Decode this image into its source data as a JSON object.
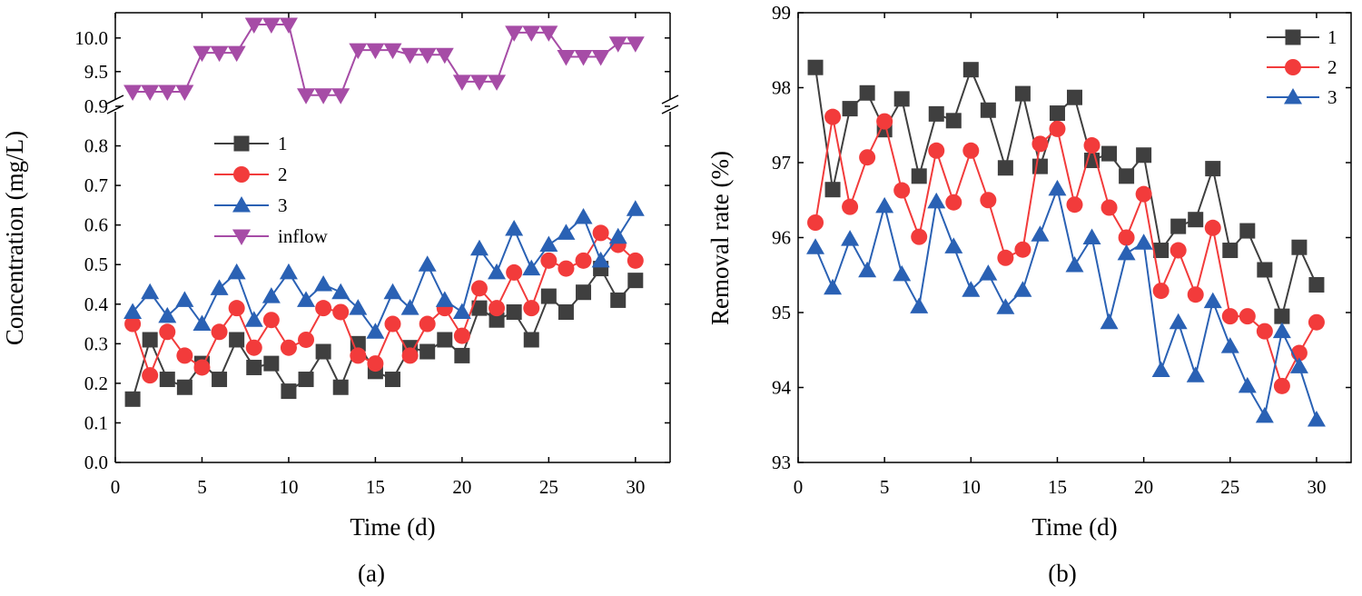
{
  "chart_data": [
    {
      "type": "line",
      "panel": "a",
      "caption": "(a)",
      "xlabel": "Time (d)",
      "ylabel": "Concentration (mg/L)",
      "xlim": [
        0,
        32
      ],
      "xticks": [
        "0",
        "5",
        "10",
        "15",
        "20",
        "25",
        "30"
      ],
      "ylim_lower": [
        0,
        0.9
      ],
      "yticks_lower": [
        "0.0",
        "0.1",
        "0.2",
        "0.3",
        "0.4",
        "0.5",
        "0.6",
        "0.7",
        "0.8",
        "0.9"
      ],
      "ylim_upper": [
        9.0,
        10.3
      ],
      "yticks_upper": [
        "9.5",
        "10.0"
      ],
      "axis_break": true,
      "x": [
        1,
        2,
        3,
        4,
        5,
        6,
        7,
        8,
        9,
        10,
        11,
        12,
        13,
        14,
        15,
        16,
        17,
        18,
        19,
        20,
        21,
        22,
        23,
        24,
        25,
        26,
        27,
        28,
        29,
        30
      ],
      "legend": [
        "1",
        "2",
        "3",
        "inflow"
      ],
      "series": [
        {
          "name": "1",
          "color": "#3f3f3f",
          "marker": "square",
          "values": [
            0.16,
            0.31,
            0.21,
            0.19,
            0.25,
            0.21,
            0.31,
            0.24,
            0.25,
            0.18,
            0.21,
            0.28,
            0.19,
            0.3,
            0.23,
            0.21,
            0.29,
            0.28,
            0.31,
            0.27,
            0.39,
            0.36,
            0.38,
            0.31,
            0.42,
            0.38,
            0.43,
            0.49,
            0.41,
            0.46
          ]
        },
        {
          "name": "2",
          "color": "#f23b3b",
          "marker": "circle",
          "values": [
            0.35,
            0.22,
            0.33,
            0.27,
            0.24,
            0.33,
            0.39,
            0.29,
            0.36,
            0.29,
            0.31,
            0.39,
            0.38,
            0.27,
            0.25,
            0.35,
            0.27,
            0.35,
            0.39,
            0.32,
            0.44,
            0.39,
            0.48,
            0.39,
            0.51,
            0.49,
            0.51,
            0.58,
            0.55,
            0.51
          ]
        },
        {
          "name": "3",
          "color": "#2a61b4",
          "marker": "triangle-up",
          "values": [
            0.38,
            0.43,
            0.37,
            0.41,
            0.35,
            0.44,
            0.48,
            0.36,
            0.42,
            0.48,
            0.41,
            0.45,
            0.43,
            0.39,
            0.33,
            0.43,
            0.39,
            0.5,
            0.41,
            0.38,
            0.54,
            0.48,
            0.59,
            0.49,
            0.55,
            0.58,
            0.62,
            0.51,
            0.57,
            0.64
          ]
        },
        {
          "name": "inflow",
          "color": "#a64ca6",
          "marker": "triangle-down",
          "values": [
            9.2,
            9.2,
            9.2,
            9.2,
            9.78,
            9.78,
            9.78,
            10.2,
            10.2,
            10.2,
            9.15,
            9.15,
            9.15,
            9.82,
            9.82,
            9.82,
            9.75,
            9.75,
            9.75,
            9.35,
            9.35,
            9.35,
            10.08,
            10.08,
            10.08,
            9.72,
            9.72,
            9.72,
            9.92,
            9.92
          ]
        }
      ]
    },
    {
      "type": "line",
      "panel": "b",
      "caption": "(b)",
      "xlabel": "Time (d)",
      "ylabel": "Removal rate (%)",
      "xlim": [
        0,
        32
      ],
      "xticks": [
        "0",
        "5",
        "10",
        "15",
        "20",
        "25",
        "30"
      ],
      "ylim": [
        93,
        99
      ],
      "yticks": [
        "93",
        "94",
        "95",
        "96",
        "97",
        "98",
        "99"
      ],
      "x": [
        1,
        2,
        3,
        4,
        5,
        6,
        7,
        8,
        9,
        10,
        11,
        12,
        13,
        14,
        15,
        16,
        17,
        18,
        19,
        20,
        21,
        22,
        23,
        24,
        25,
        26,
        27,
        28,
        29,
        30
      ],
      "legend": [
        "1",
        "2",
        "3"
      ],
      "series": [
        {
          "name": "1",
          "color": "#3f3f3f",
          "marker": "square",
          "values": [
            98.27,
            96.64,
            97.72,
            97.93,
            97.44,
            97.85,
            96.82,
            97.65,
            97.56,
            98.24,
            97.7,
            96.93,
            97.92,
            96.95,
            97.66,
            97.87,
            97.03,
            97.12,
            96.82,
            97.1,
            95.83,
            96.15,
            96.24,
            96.92,
            95.83,
            96.09,
            95.57,
            94.95,
            95.87,
            95.37
          ]
        },
        {
          "name": "2",
          "color": "#f23b3b",
          "marker": "circle",
          "values": [
            96.2,
            97.61,
            96.41,
            97.07,
            97.55,
            96.63,
            96.01,
            97.16,
            96.47,
            97.16,
            96.5,
            95.73,
            95.84,
            97.25,
            97.45,
            96.44,
            97.23,
            96.4,
            96.0,
            96.58,
            95.29,
            95.83,
            95.24,
            96.13,
            94.95,
            94.95,
            94.75,
            94.02,
            94.46,
            94.87
          ]
        },
        {
          "name": "3",
          "color": "#2a61b4",
          "marker": "triangle-up",
          "values": [
            95.87,
            95.33,
            95.98,
            95.56,
            96.42,
            95.51,
            95.08,
            96.48,
            95.88,
            95.3,
            95.52,
            95.07,
            95.3,
            96.04,
            96.65,
            95.63,
            96.0,
            94.87,
            95.79,
            95.93,
            94.23,
            94.87,
            94.16,
            95.15,
            94.55,
            94.02,
            93.62,
            94.75,
            94.28,
            93.57
          ]
        }
      ]
    }
  ]
}
